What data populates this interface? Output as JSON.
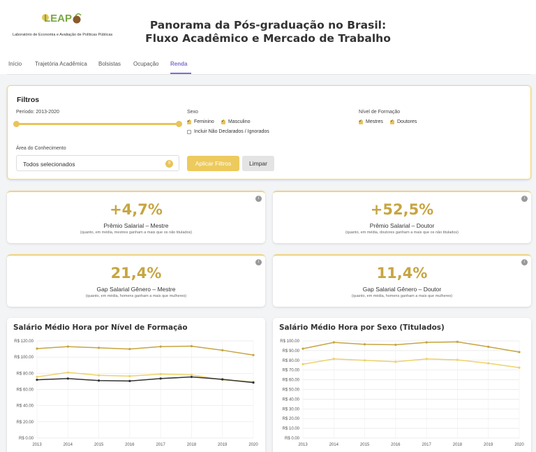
{
  "header": {
    "logo_text": "LEAP",
    "logo_subtitle": "Laboratório de Economia e Avaliação de Políticas Públicas",
    "title_line1": "Panorama da Pós-graduação no Brasil:",
    "title_line2": "Fluxo Acadêmico e Mercado de Trabalho"
  },
  "nav": {
    "tabs": [
      {
        "label": "Início",
        "active": false
      },
      {
        "label": "Trajetória Acadêmica",
        "active": false
      },
      {
        "label": "Bolsistas",
        "active": false
      },
      {
        "label": "Ocupação",
        "active": false
      },
      {
        "label": "Renda",
        "active": true
      }
    ],
    "accent": "#7b6fd6"
  },
  "filters": {
    "title": "Filtros",
    "period_label": "Período: 2013-2020",
    "period_range": [
      2013,
      2020
    ],
    "sex_label": "Sexo",
    "sex_options": [
      {
        "label": "Feminino",
        "checked": true
      },
      {
        "label": "Masculino",
        "checked": true
      }
    ],
    "include_undeclared": {
      "label": "Incluir Não Declarados / Ignorados",
      "checked": false
    },
    "level_label": "Nível de Formação",
    "level_options": [
      {
        "label": "Mestres",
        "checked": true
      },
      {
        "label": "Doutores",
        "checked": true
      }
    ],
    "area_label": "Área do Conhecimento",
    "area_value": "Todos selecionados",
    "area_badge": "9",
    "apply_label": "Aplicar Filtros",
    "clear_label": "Limpar",
    "accent": "#e8c45a"
  },
  "kpis": [
    {
      "value": "+4,7%",
      "label": "Prêmio Salarial – Mestre",
      "note": "(quanto, em média, mestres ganham a mais que os não titulados)"
    },
    {
      "value": "+52,5%",
      "label": "Prêmio Salarial – Doutor",
      "note": "(quanto, em média, doutores ganham a mais que os não titulados)"
    },
    {
      "value": "21,4%",
      "label": "Gap Salarial Gênero – Mestre",
      "note": "(quanto, em média, homens ganham a mais que mulheres)"
    },
    {
      "value": "11,4%",
      "label": "Gap Salarial Gênero – Doutor",
      "note": "(quanto, em média, homens ganham a mais que mulheres)"
    }
  ],
  "kpi_value_color": "#c7a541",
  "chart_data": [
    {
      "type": "line",
      "title": "Salário Médio Hora por Nível de Formação",
      "x": [
        2013,
        2014,
        2015,
        2016,
        2017,
        2018,
        2019,
        2020
      ],
      "ylim": [
        0,
        120
      ],
      "yticks": [
        0,
        20,
        40,
        60,
        80,
        100,
        120
      ],
      "ytick_labels": [
        "R$ 0.00",
        "R$ 20.00",
        "R$ 40.00",
        "R$ 60.00",
        "R$ 80.00",
        "R$ 100.00",
        "R$ 120.00"
      ],
      "grid": true,
      "series": [
        {
          "values": [
            110.5,
            113,
            111.5,
            110,
            113,
            113.5,
            108.5,
            102.5
          ],
          "color": "#c7a541"
        },
        {
          "values": [
            75.5,
            81,
            77.5,
            76.5,
            79,
            78,
            72,
            69.5
          ],
          "color": "#edd26a"
        },
        {
          "values": [
            72,
            73.5,
            71,
            70.5,
            73.5,
            75.5,
            72.5,
            68.5
          ],
          "color": "#333333"
        }
      ]
    },
    {
      "type": "line",
      "title": "Salário Médio Hora por Sexo (Titulados)",
      "x": [
        2013,
        2014,
        2015,
        2016,
        2017,
        2018,
        2019,
        2020
      ],
      "ylim": [
        0,
        100
      ],
      "yticks": [
        0,
        10,
        20,
        30,
        40,
        50,
        60,
        70,
        80,
        90,
        100
      ],
      "ytick_labels": [
        "R$ 0.00",
        "R$ 10.00",
        "R$ 20.00",
        "R$ 30.00",
        "R$ 40.00",
        "R$ 50.00",
        "R$ 60.00",
        "R$ 70.00",
        "R$ 80.00",
        "R$ 90.00",
        "R$ 100.00"
      ],
      "grid": true,
      "series": [
        {
          "values": [
            92,
            98.5,
            96.5,
            96,
            98.5,
            99,
            94,
            88.5
          ],
          "color": "#c7a541"
        },
        {
          "values": [
            76,
            81.5,
            80,
            78.5,
            81.5,
            80.5,
            77,
            72.5
          ],
          "color": "#edd26a"
        }
      ]
    }
  ]
}
